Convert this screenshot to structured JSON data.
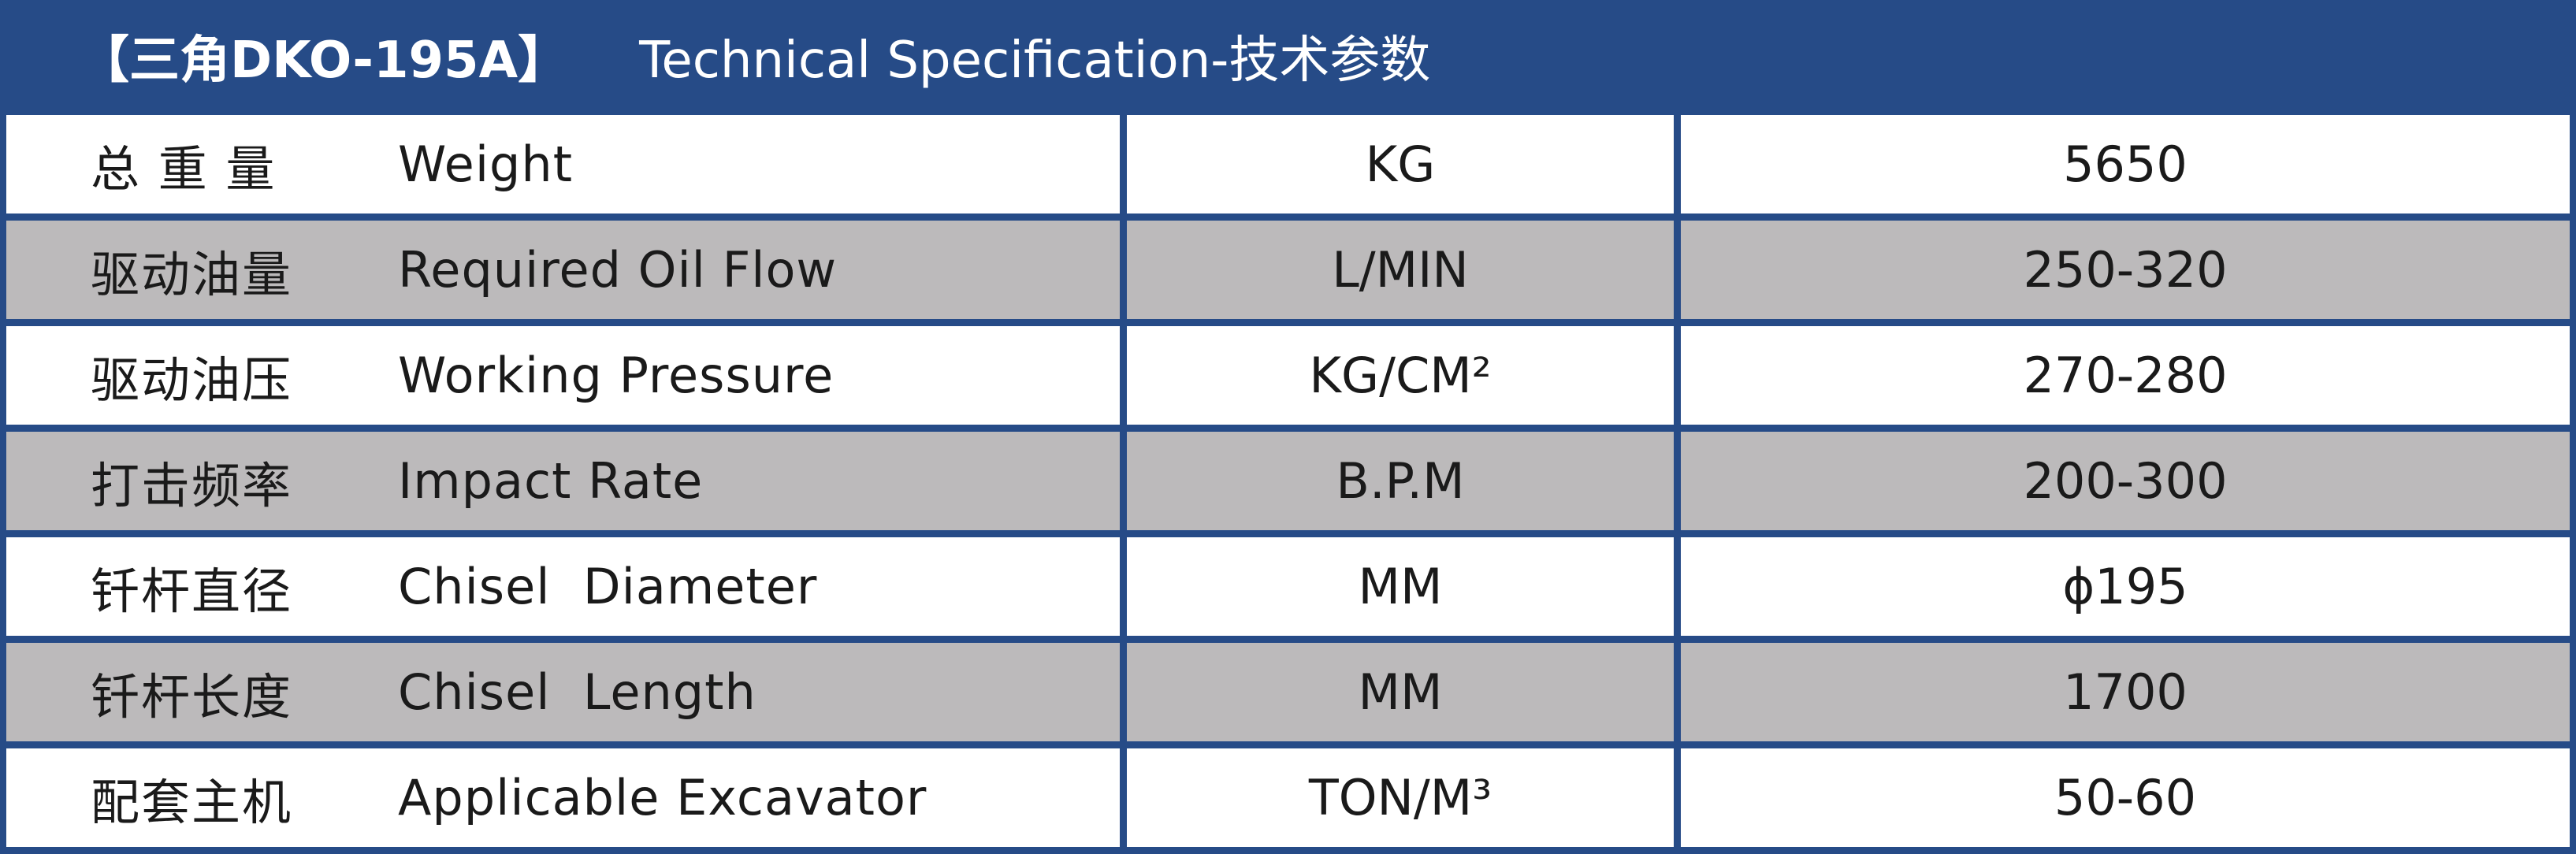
{
  "header": {
    "model": "【三角DKO-195A】",
    "title": "Technical Specification-技术参数"
  },
  "colors": {
    "header_bg": "#264b87",
    "row_gray": "#bcbabb",
    "row_white": "#ffffff"
  },
  "rows": [
    {
      "zh": "总 重 量",
      "en": "Weight",
      "unit": "KG",
      "value": "5650"
    },
    {
      "zh": "驱动油量",
      "en": "Required Oil Flow",
      "unit": "L/MIN",
      "value": "250-320"
    },
    {
      "zh": "驱动油压",
      "en": "Working Pressure",
      "unit": "KG/CM²",
      "value": "270-280"
    },
    {
      "zh": "打击频率",
      "en": "Impact Rate",
      "unit": "B.P.M",
      "value": "200-300"
    },
    {
      "zh": "钎杆直径",
      "en": "Chisel  Diameter",
      "unit": "MM",
      "value": "ϕ195"
    },
    {
      "zh": "钎杆长度",
      "en": "Chisel  Length",
      "unit": "MM",
      "value": "1700"
    },
    {
      "zh": "配套主机",
      "en": "Applicable Excavator",
      "unit": "TON/M³",
      "value": "50-60"
    }
  ]
}
